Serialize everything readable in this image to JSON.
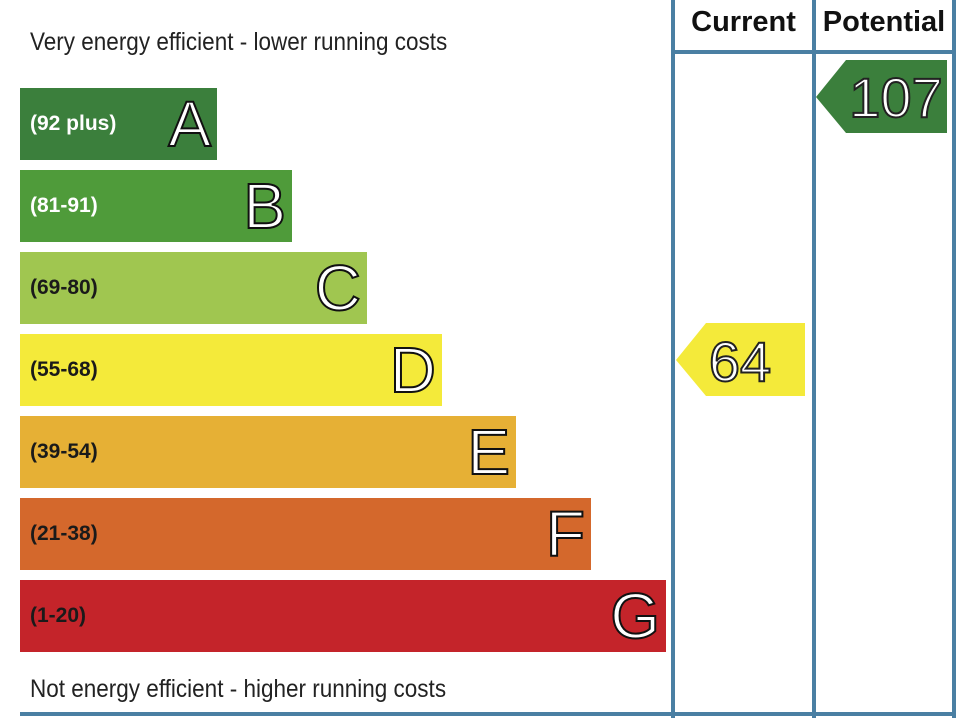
{
  "chart_data": {
    "type": "bar",
    "title": "",
    "top_label": "Very energy efficient - lower running costs",
    "bottom_label": "Not energy efficient - higher running costs",
    "columns": [
      "Current",
      "Potential"
    ],
    "bands": [
      {
        "letter": "A",
        "range": "(92 plus)",
        "color": "#3b7f3c"
      },
      {
        "letter": "B",
        "range": "(81-91)",
        "color": "#4f9b3a"
      },
      {
        "letter": "C",
        "range": "(69-80)",
        "color": "#a0c650"
      },
      {
        "letter": "D",
        "range": "(55-68)",
        "color": "#f4ea3a"
      },
      {
        "letter": "E",
        "range": "(39-54)",
        "color": "#e6b035"
      },
      {
        "letter": "F",
        "range": "(21-38)",
        "color": "#d4682c"
      },
      {
        "letter": "G",
        "range": "(1-20)",
        "color": "#c4242a"
      }
    ],
    "current": {
      "value": "64",
      "band": "D",
      "color": "#f4ea3a"
    },
    "potential": {
      "value": "107",
      "band": "A",
      "color": "#3b7f3c"
    }
  }
}
